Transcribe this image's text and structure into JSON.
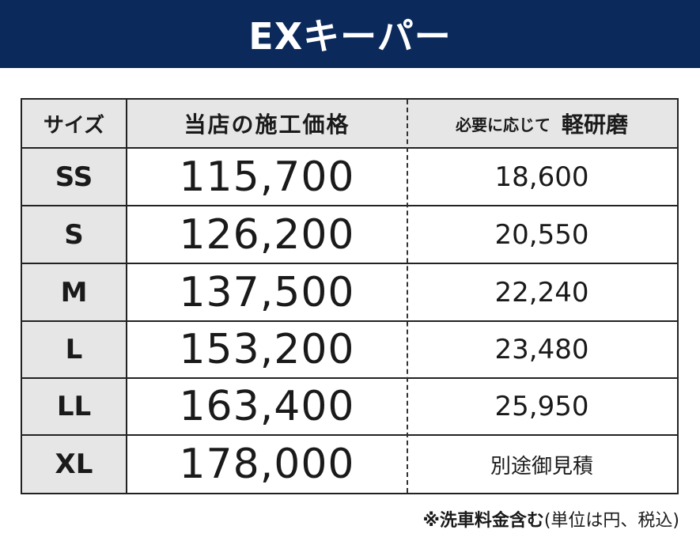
{
  "header": {
    "title": "EXキーパー"
  },
  "table": {
    "columns": {
      "size": "サイズ",
      "price": "当店の施工価格",
      "polish_prefix": "必要に応じて",
      "polish_strong": "軽研磨"
    },
    "rows": [
      {
        "size": "SS",
        "price": "115,700",
        "polish": "18,600"
      },
      {
        "size": "S",
        "price": "126,200",
        "polish": "20,550"
      },
      {
        "size": "M",
        "price": "137,500",
        "polish": "22,240"
      },
      {
        "size": "L",
        "price": "153,200",
        "polish": "23,480"
      },
      {
        "size": "LL",
        "price": "163,400",
        "polish": "25,950"
      },
      {
        "size": "XL",
        "price": "178,000",
        "polish": "別途御見積"
      }
    ]
  },
  "note": {
    "bold": "※洗車料金含む",
    "normal": "(単位は円、税込)"
  },
  "colors": {
    "header_bg": "#0b2a5b",
    "cell_gray": "#e6e6e6"
  }
}
